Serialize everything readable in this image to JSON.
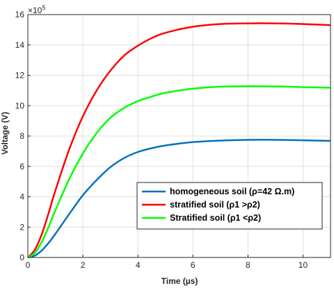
{
  "chart_data": {
    "type": "line",
    "title": "",
    "xlabel": "Time (µs)",
    "ylabel": "Voltage (V)",
    "xlim": [
      0,
      11
    ],
    "ylim": [
      0,
      16
    ],
    "y_scale_exponent": "5",
    "y_scale_base": "×10",
    "xticks": [
      0,
      2,
      4,
      6,
      8,
      10
    ],
    "yticks": [
      0,
      2,
      4,
      6,
      8,
      10,
      12,
      14,
      16
    ],
    "xtick_labels": [
      "0",
      "2",
      "4",
      "6",
      "8",
      "10"
    ],
    "ytick_labels": [
      "0",
      "2",
      "4",
      "6",
      "8",
      "10",
      "12",
      "14",
      "16"
    ],
    "grid": true,
    "legend_position": "bottom-right",
    "series": [
      {
        "name": "homogeneous soil (ρ=42 Ω.m)",
        "color": "#0072BD",
        "x": [
          0,
          0.25,
          0.5,
          0.75,
          1,
          1.5,
          2,
          2.5,
          3,
          3.5,
          4,
          4.5,
          5,
          6,
          7,
          8,
          9,
          10,
          11
        ],
        "y": [
          0,
          0.12,
          0.45,
          0.95,
          1.55,
          2.85,
          4.1,
          5.1,
          5.95,
          6.55,
          6.95,
          7.2,
          7.38,
          7.6,
          7.7,
          7.75,
          7.75,
          7.72,
          7.68
        ]
      },
      {
        "name": "stratified soil (ρ1 >ρ2)",
        "color": "#FF0000",
        "x": [
          0,
          0.25,
          0.5,
          0.75,
          1,
          1.5,
          2,
          2.5,
          3,
          3.5,
          4,
          4.5,
          5,
          6,
          7,
          8,
          9,
          10,
          11
        ],
        "y": [
          0,
          0.5,
          1.5,
          2.9,
          4.4,
          7.1,
          9.3,
          11.0,
          12.3,
          13.3,
          13.95,
          14.45,
          14.8,
          15.2,
          15.38,
          15.42,
          15.42,
          15.38,
          15.3
        ]
      },
      {
        "name": "Stratified soil (ρ1 <ρ2)",
        "color": "#00FF00",
        "x": [
          0,
          0.25,
          0.5,
          0.75,
          1,
          1.5,
          2,
          2.5,
          3,
          3.5,
          4,
          4.5,
          5,
          6,
          7,
          8,
          9,
          10,
          11
        ],
        "y": [
          0,
          0.3,
          1.0,
          2.0,
          3.1,
          5.15,
          6.85,
          8.2,
          9.2,
          9.85,
          10.3,
          10.6,
          10.85,
          11.12,
          11.25,
          11.28,
          11.27,
          11.22,
          11.18
        ]
      }
    ]
  }
}
